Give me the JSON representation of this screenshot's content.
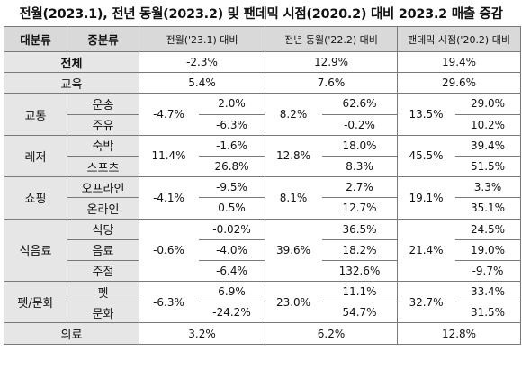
{
  "title": "전월(2023.1), 전년 동월(2023.2) 및 팬데믹 시점(2020.2) 대비 2023.2 매출 증감",
  "headers": {
    "major": "대분류",
    "minor": "중분류",
    "prev_month": "전월('23.1) 대비",
    "prev_year": "전년 동월('22.2) 대비",
    "pandemic": "팬데믹 시점('20.2) 대비"
  },
  "total": {
    "label": "전체",
    "prev_month": "-2.3%",
    "prev_year": "12.9%",
    "pandemic": "19.4%"
  },
  "education": {
    "label": "교육",
    "prev_month": "5.4%",
    "prev_year": "7.6%",
    "pandemic": "29.6%"
  },
  "groups": [
    {
      "label": "교통",
      "prev_month": "-4.7%",
      "prev_year": "8.2%",
      "pandemic": "13.5%",
      "items": [
        {
          "label": "운송",
          "prev_month": "2.0%",
          "prev_year": "62.6%",
          "pandemic": "29.0%"
        },
        {
          "label": "주유",
          "prev_month": "-6.3%",
          "prev_year": "-0.2%",
          "pandemic": "10.2%"
        }
      ]
    },
    {
      "label": "레저",
      "prev_month": "11.4%",
      "prev_year": "12.8%",
      "pandemic": "45.5%",
      "items": [
        {
          "label": "숙박",
          "prev_month": "-1.6%",
          "prev_year": "18.0%",
          "pandemic": "39.4%"
        },
        {
          "label": "스포츠",
          "prev_month": "26.8%",
          "prev_year": "8.3%",
          "pandemic": "51.5%"
        }
      ]
    },
    {
      "label": "쇼핑",
      "prev_month": "-4.1%",
      "prev_year": "8.1%",
      "pandemic": "19.1%",
      "items": [
        {
          "label": "오프라인",
          "prev_month": "-9.5%",
          "prev_year": "2.7%",
          "pandemic": "3.3%"
        },
        {
          "label": "온라인",
          "prev_month": "0.5%",
          "prev_year": "12.7%",
          "pandemic": "35.1%"
        }
      ]
    },
    {
      "label": "식음료",
      "prev_month": "-0.6%",
      "prev_year": "39.6%",
      "pandemic": "21.4%",
      "items": [
        {
          "label": "식당",
          "prev_month": "-0.02%",
          "prev_year": "36.5%",
          "pandemic": "24.5%"
        },
        {
          "label": "음료",
          "prev_month": "-4.0%",
          "prev_year": "18.2%",
          "pandemic": "19.0%"
        },
        {
          "label": "주점",
          "prev_month": "-6.4%",
          "prev_year": "132.6%",
          "pandemic": "-9.7%"
        }
      ]
    },
    {
      "label": "펫/문화",
      "prev_month": "-6.3%",
      "prev_year": "23.0%",
      "pandemic": "32.7%",
      "items": [
        {
          "label": "펫",
          "prev_month": "6.9%",
          "prev_year": "11.1%",
          "pandemic": "33.4%"
        },
        {
          "label": "문화",
          "prev_month": "-24.2%",
          "prev_year": "54.7%",
          "pandemic": "31.5%"
        }
      ]
    }
  ],
  "medical": {
    "label": "의료",
    "prev_month": "3.2%",
    "prev_year": "6.2%",
    "pandemic": "12.8%"
  }
}
